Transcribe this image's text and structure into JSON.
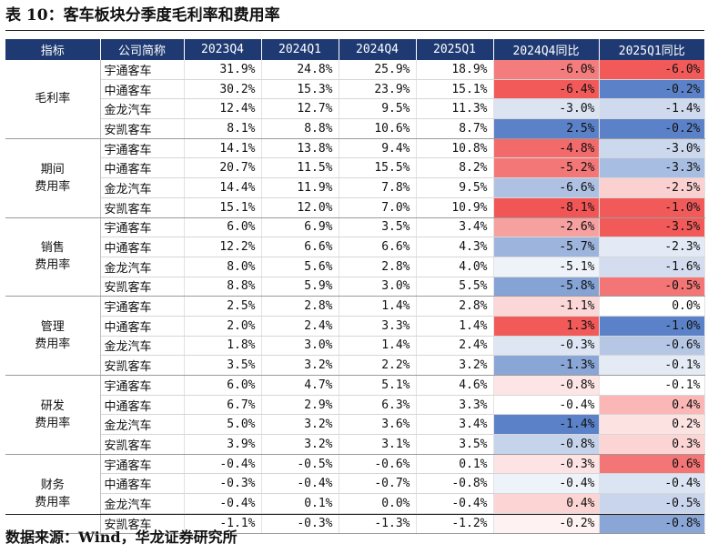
{
  "title": "表 10：客车板块分季度毛利率和费用率",
  "source": "数据来源：Wind，华龙证券研究所",
  "headers": [
    "指标",
    "公司简称",
    "2023Q4",
    "2024Q1",
    "2024Q4",
    "2025Q1",
    "2024Q4同比",
    "2025Q1同比"
  ],
  "groups": [
    {
      "label": "毛利率",
      "label_lines": [
        "毛利率"
      ],
      "rows": [
        {
          "company": "宇通客车",
          "q2023q4": "31.9%",
          "q2024q1": "24.8%",
          "q2024q4": "25.9%",
          "q2025q1": "18.9%",
          "yoy_2024q4": "-6.0%",
          "yoy_2025q1": "-6.0%"
        },
        {
          "company": "中通客车",
          "q2023q4": "30.2%",
          "q2024q1": "15.3%",
          "q2024q4": "23.9%",
          "q2025q1": "15.1%",
          "yoy_2024q4": "-6.4%",
          "yoy_2025q1": "-0.2%"
        },
        {
          "company": "金龙汽车",
          "q2023q4": "12.4%",
          "q2024q1": "12.7%",
          "q2024q4": "9.5%",
          "q2025q1": "11.3%",
          "yoy_2024q4": "-3.0%",
          "yoy_2025q1": "-1.4%"
        },
        {
          "company": "安凯客车",
          "q2023q4": "8.1%",
          "q2024q1": "8.8%",
          "q2024q4": "10.6%",
          "q2025q1": "8.7%",
          "yoy_2024q4": "2.5%",
          "yoy_2025q1": "-0.2%"
        }
      ]
    },
    {
      "label": "期间费用率",
      "label_lines": [
        "期间",
        "费用率"
      ],
      "rows": [
        {
          "company": "宇通客车",
          "q2023q4": "14.1%",
          "q2024q1": "13.8%",
          "q2024q4": "9.4%",
          "q2025q1": "10.8%",
          "yoy_2024q4": "-4.8%",
          "yoy_2025q1": "-3.0%"
        },
        {
          "company": "中通客车",
          "q2023q4": "20.7%",
          "q2024q1": "11.5%",
          "q2024q4": "15.5%",
          "q2025q1": "8.2%",
          "yoy_2024q4": "-5.2%",
          "yoy_2025q1": "-3.3%"
        },
        {
          "company": "金龙汽车",
          "q2023q4": "14.4%",
          "q2024q1": "11.9%",
          "q2024q4": "7.8%",
          "q2025q1": "9.5%",
          "yoy_2024q4": "-6.6%",
          "yoy_2025q1": "-2.5%"
        },
        {
          "company": "安凯客车",
          "q2023q4": "15.1%",
          "q2024q1": "12.0%",
          "q2024q4": "7.0%",
          "q2025q1": "10.9%",
          "yoy_2024q4": "-8.1%",
          "yoy_2025q1": "-1.0%"
        }
      ]
    },
    {
      "label": "销售费用率",
      "label_lines": [
        "销售",
        "费用率"
      ],
      "rows": [
        {
          "company": "宇通客车",
          "q2023q4": "6.0%",
          "q2024q1": "6.9%",
          "q2024q4": "3.5%",
          "q2025q1": "3.4%",
          "yoy_2024q4": "-2.6%",
          "yoy_2025q1": "-3.5%"
        },
        {
          "company": "中通客车",
          "q2023q4": "12.2%",
          "q2024q1": "6.6%",
          "q2024q4": "6.6%",
          "q2025q1": "4.3%",
          "yoy_2024q4": "-5.7%",
          "yoy_2025q1": "-2.3%"
        },
        {
          "company": "金龙汽车",
          "q2023q4": "8.0%",
          "q2024q1": "5.6%",
          "q2024q4": "2.8%",
          "q2025q1": "4.0%",
          "yoy_2024q4": "-5.1%",
          "yoy_2025q1": "-1.6%"
        },
        {
          "company": "安凯客车",
          "q2023q4": "8.8%",
          "q2024q1": "5.9%",
          "q2024q4": "3.0%",
          "q2025q1": "5.5%",
          "yoy_2024q4": "-5.8%",
          "yoy_2025q1": "-0.5%"
        }
      ]
    },
    {
      "label": "管理费用率",
      "label_lines": [
        "管理",
        "费用率"
      ],
      "rows": [
        {
          "company": "宇通客车",
          "q2023q4": "2.5%",
          "q2024q1": "2.8%",
          "q2024q4": "1.4%",
          "q2025q1": "2.8%",
          "yoy_2024q4": "-1.1%",
          "yoy_2025q1": "0.0%"
        },
        {
          "company": "中通客车",
          "q2023q4": "2.0%",
          "q2024q1": "2.4%",
          "q2024q4": "3.3%",
          "q2025q1": "1.4%",
          "yoy_2024q4": "1.3%",
          "yoy_2025q1": "-1.0%"
        },
        {
          "company": "金龙汽车",
          "q2023q4": "1.8%",
          "q2024q1": "3.0%",
          "q2024q4": "1.4%",
          "q2025q1": "2.4%",
          "yoy_2024q4": "-0.3%",
          "yoy_2025q1": "-0.6%"
        },
        {
          "company": "安凯客车",
          "q2023q4": "3.5%",
          "q2024q1": "3.2%",
          "q2024q4": "2.2%",
          "q2025q1": "3.2%",
          "yoy_2024q4": "-1.3%",
          "yoy_2025q1": "-0.1%"
        }
      ]
    },
    {
      "label": "研发费用率",
      "label_lines": [
        "研发",
        "费用率"
      ],
      "rows": [
        {
          "company": "宇通客车",
          "q2023q4": "6.0%",
          "q2024q1": "4.7%",
          "q2024q4": "5.1%",
          "q2025q1": "4.6%",
          "yoy_2024q4": "-0.8%",
          "yoy_2025q1": "-0.1%"
        },
        {
          "company": "中通客车",
          "q2023q4": "6.7%",
          "q2024q1": "2.9%",
          "q2024q4": "6.3%",
          "q2025q1": "3.3%",
          "yoy_2024q4": "-0.4%",
          "yoy_2025q1": "0.4%"
        },
        {
          "company": "金龙汽车",
          "q2023q4": "5.0%",
          "q2024q1": "3.2%",
          "q2024q4": "3.6%",
          "q2025q1": "3.4%",
          "yoy_2024q4": "-1.4%",
          "yoy_2025q1": "0.2%"
        },
        {
          "company": "安凯客车",
          "q2023q4": "3.9%",
          "q2024q1": "3.2%",
          "q2024q4": "3.1%",
          "q2025q1": "3.5%",
          "yoy_2024q4": "-0.8%",
          "yoy_2025q1": "0.3%"
        }
      ]
    },
    {
      "label": "财务费用率",
      "label_lines": [
        "财务",
        "费用率"
      ],
      "rows": [
        {
          "company": "宇通客车",
          "q2023q4": "-0.4%",
          "q2024q1": "-0.5%",
          "q2024q4": "-0.6%",
          "q2025q1": "0.1%",
          "yoy_2024q4": "-0.3%",
          "yoy_2025q1": "0.6%"
        },
        {
          "company": "中通客车",
          "q2023q4": "-0.3%",
          "q2024q1": "-0.4%",
          "q2024q4": "-0.7%",
          "q2025q1": "-0.8%",
          "yoy_2024q4": "-0.4%",
          "yoy_2025q1": "-0.4%"
        },
        {
          "company": "金龙汽车",
          "q2023q4": "-0.4%",
          "q2024q1": "0.1%",
          "q2024q4": "0.0%",
          "q2025q1": "-0.4%",
          "yoy_2024q4": "0.4%",
          "yoy_2025q1": "-0.5%"
        },
        {
          "company": "安凯客车",
          "q2023q4": "-1.1%",
          "q2024q1": "-0.3%",
          "q2024q4": "-1.3%",
          "q2025q1": "-1.2%",
          "yoy_2024q4": "-0.2%",
          "yoy_2025q1": "-0.8%"
        }
      ]
    }
  ],
  "cell_colors": {
    "yoy_2024q4": [
      [
        "#f47c7c",
        "#f25a5a",
        "#dce4f2",
        "#5b82c8"
      ],
      [
        "#f36a6a",
        "#f37777",
        "#aec1e3",
        "#f25555"
      ],
      [
        "#f6a0a0",
        "#9db4dd",
        "#eef2f9",
        "#86a3d5"
      ],
      [
        "#fbd7d7",
        "#f25a5a",
        "#dfe6f3",
        "#8aa6d6"
      ],
      [
        "#fde5e5",
        "#ffffff",
        "#5b82c8",
        "#c5d3eb"
      ],
      [
        "#fde3e3",
        "#eef2f9",
        "#fcd4d4",
        "#fef2f2"
      ]
    ],
    "yoy_2025q1": [
      [
        "#f25a5a",
        "#5b82c8",
        "#cfdaee",
        "#5b82c8"
      ],
      [
        "#cbd8ee",
        "#a8bde2",
        "#fad0d0",
        "#f25a5a"
      ],
      [
        "#f25a5a",
        "#e3e9f5",
        "#d3ddef",
        "#f47575"
      ],
      [
        "#ffffff",
        "#5b82c8",
        "#b6c7e6",
        "#e5ebf5"
      ],
      [
        "#ffffff",
        "#fbb6b6",
        "#fde2e2",
        "#fdd4d4"
      ],
      [
        "#f47575",
        "#dbe4f3",
        "#c8d5ec",
        "#8aa6d6"
      ]
    ]
  }
}
